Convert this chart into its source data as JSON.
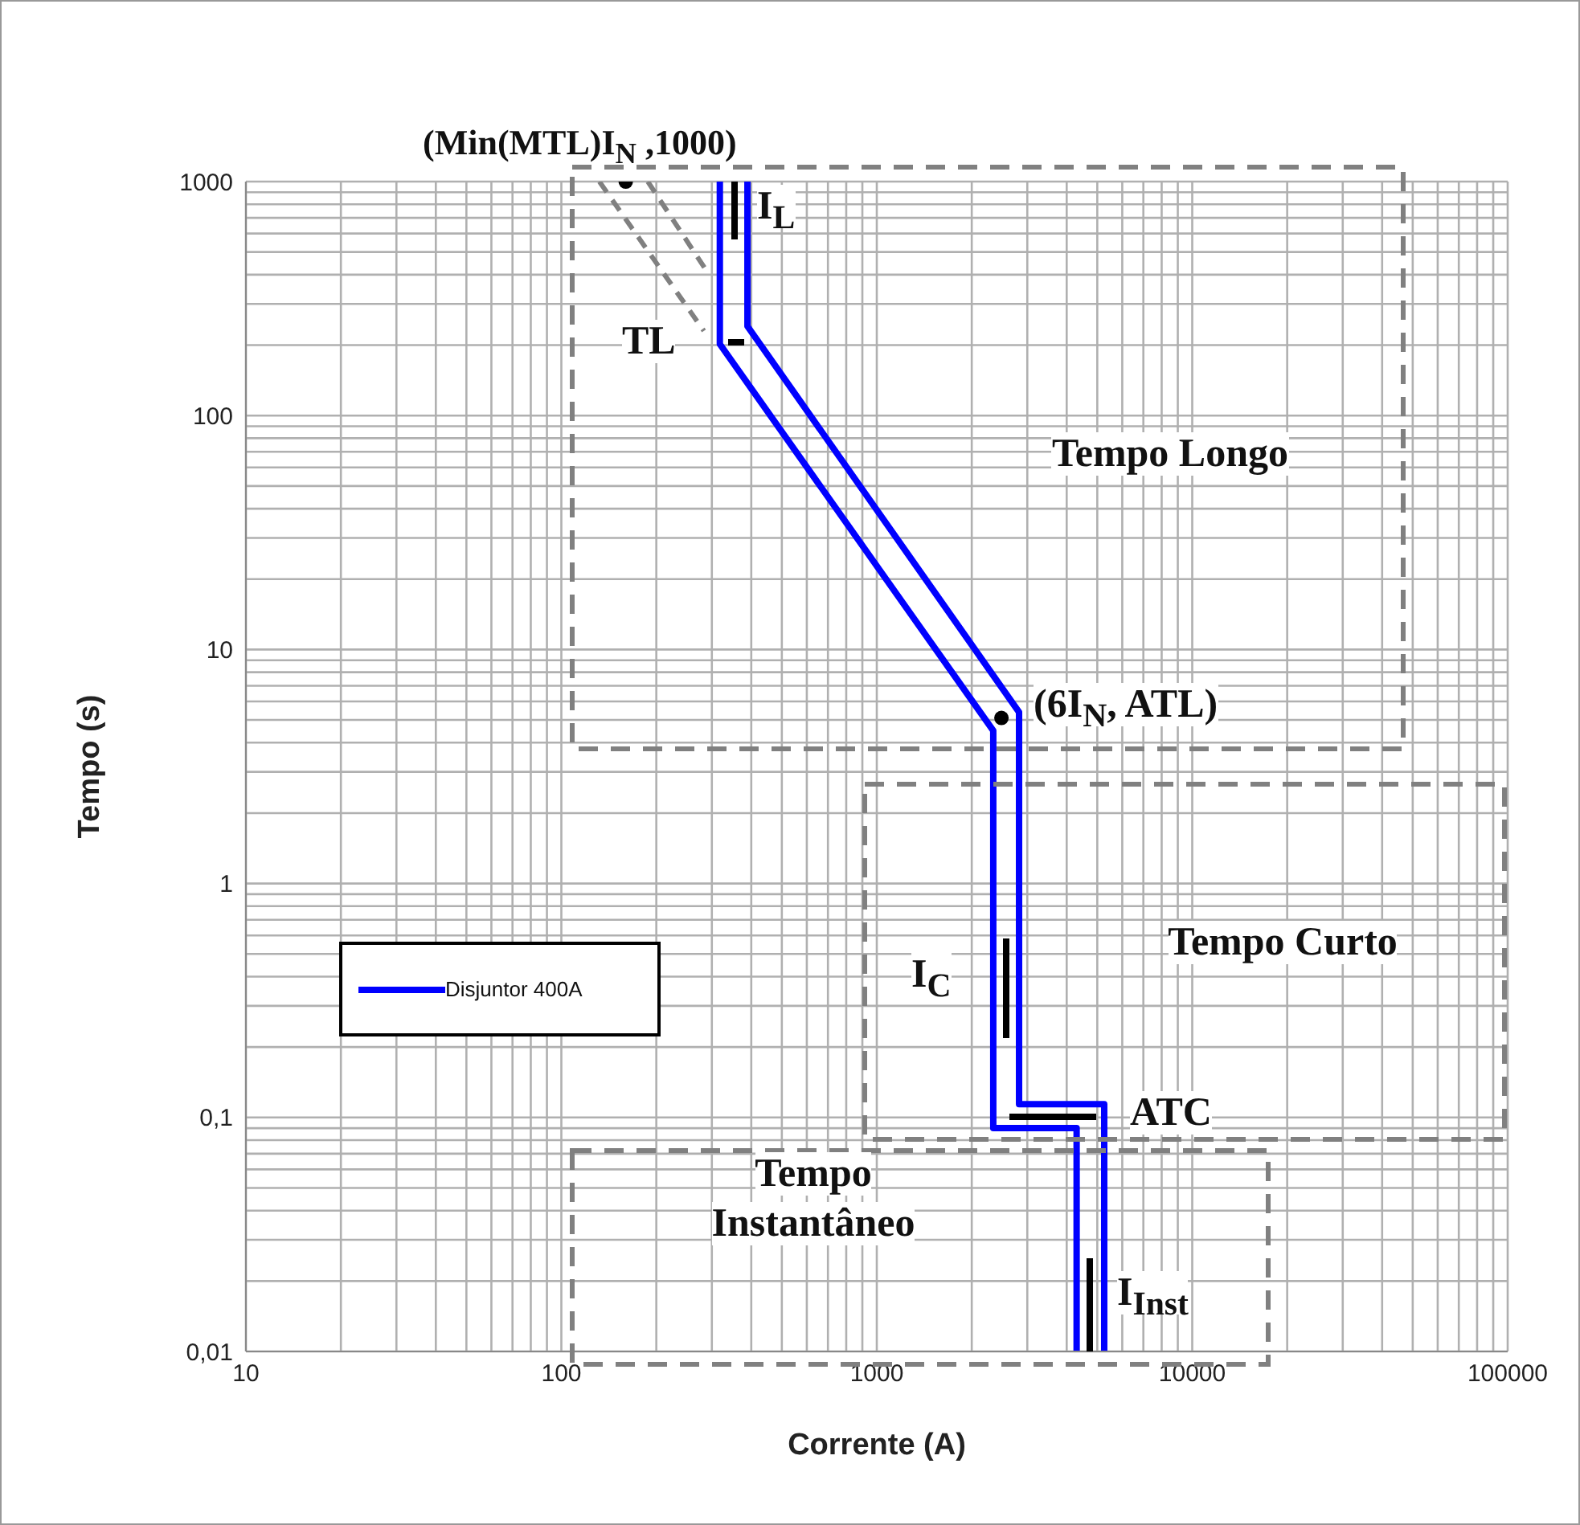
{
  "chart_data": {
    "type": "line",
    "xlabel": "Corrente (A)",
    "ylabel": "Tempo (s)",
    "log": "xy",
    "grid": true,
    "legend": "left",
    "marker": "none",
    "line_style": "solid",
    "xlim": [
      10,
      100000
    ],
    "xticks": [
      10,
      {
        "value": 20,
        "label": null
      },
      {
        "value": 30,
        "label": null
      },
      {
        "value": 40,
        "label": null
      },
      {
        "value": 50,
        "label": null
      },
      {
        "value": 60,
        "label": null
      },
      {
        "value": 70,
        "label": null
      },
      {
        "value": 80,
        "label": null
      },
      {
        "value": 90,
        "label": null
      },
      100,
      {
        "value": 200,
        "label": null
      },
      {
        "value": 300,
        "label": null
      },
      {
        "value": 400,
        "label": null
      },
      {
        "value": 500,
        "label": null
      },
      {
        "value": 600,
        "label": null
      },
      {
        "value": 700,
        "label": null
      },
      {
        "value": 800,
        "label": null
      },
      {
        "value": 900,
        "label": null
      },
      1000,
      {
        "value": 2000,
        "label": null
      },
      {
        "value": 3000,
        "label": null
      },
      {
        "value": 4000,
        "label": null
      },
      {
        "value": 5000,
        "label": null
      },
      {
        "value": 6000,
        "label": null
      },
      {
        "value": 7000,
        "label": null
      },
      {
        "value": 8000,
        "label": null
      },
      {
        "value": 9000,
        "label": null
      },
      10000,
      {
        "value": 20000,
        "label": null
      },
      {
        "value": 30000,
        "label": null
      },
      {
        "value": 40000,
        "label": null
      },
      {
        "value": 50000,
        "label": null
      },
      {
        "value": 60000,
        "label": null
      },
      {
        "value": 70000,
        "label": null
      },
      {
        "value": 80000,
        "label": null
      },
      {
        "value": 90000,
        "label": null
      },
      100000
    ],
    "ylim": [
      0.01,
      1000
    ],
    "yticks": [
      {
        "value": 0.01,
        "label": "0,01"
      },
      {
        "value": 0.02,
        "label": null
      },
      {
        "value": 0.03,
        "label": null
      },
      {
        "value": 0.04,
        "label": null
      },
      {
        "value": 0.05,
        "label": null
      },
      {
        "value": 0.06,
        "label": null
      },
      {
        "value": 0.07,
        "label": null
      },
      {
        "value": 0.08,
        "label": null
      },
      {
        "value": 0.09,
        "label": null
      },
      {
        "value": 0.1,
        "label": "0,1"
      },
      {
        "value": 0.2,
        "label": null
      },
      {
        "value": 0.3,
        "label": null
      },
      {
        "value": 0.4,
        "label": null
      },
      {
        "value": 0.5,
        "label": null
      },
      {
        "value": 0.6,
        "label": null
      },
      {
        "value": 0.7,
        "label": null
      },
      {
        "value": 0.8,
        "label": null
      },
      {
        "value": 0.9,
        "label": null
      },
      1,
      {
        "value": 2,
        "label": null
      },
      {
        "value": 3,
        "label": null
      },
      {
        "value": 4,
        "label": null
      },
      {
        "value": 5,
        "label": null
      },
      {
        "value": 6,
        "label": null
      },
      {
        "value": 7,
        "label": null
      },
      {
        "value": 8,
        "label": null
      },
      {
        "value": 9,
        "label": null
      },
      10,
      {
        "value": 20,
        "label": null
      },
      {
        "value": 30,
        "label": null
      },
      {
        "value": 40,
        "label": null
      },
      {
        "value": 50,
        "label": null
      },
      {
        "value": 60,
        "label": null
      },
      {
        "value": 70,
        "label": null
      },
      {
        "value": 80,
        "label": null
      },
      {
        "value": 90,
        "label": null
      },
      100,
      {
        "value": 200,
        "label": null
      },
      {
        "value": 300,
        "label": null
      },
      {
        "value": 400,
        "label": null
      },
      {
        "value": 500,
        "label": null
      },
      {
        "value": 600,
        "label": null
      },
      {
        "value": 700,
        "label": null
      },
      {
        "value": 800,
        "label": null
      },
      {
        "value": 900,
        "label": null
      },
      1000
    ],
    "series": [
      {
        "name": "Disjuntor 400A",
        "color": "#0000ff",
        "x": [
          318,
          318,
          2340,
          2340,
          4300,
          4300
        ],
        "values": [
          1000,
          202,
          4.5,
          0.09,
          0.09,
          0.01
        ]
      },
      {
        "color": "#0000ff",
        "x": [
          389,
          389,
          2825,
          2825,
          5260,
          5260
        ],
        "values": [
          1000,
          241,
          5.4,
          0.114,
          0.114,
          0.01
        ]
      },
      {
        "color": "#808080",
        "line_style": "dashed",
        "x": [
          132,
          283
        ],
        "values": [
          1000,
          230
        ]
      },
      {
        "color": "#808080",
        "line_style": "dashed",
        "x": [
          188,
          294
        ],
        "values": [
          1000,
          400
        ]
      },
      {
        "type": "scatter",
        "color": "#000000",
        "marker": "circle",
        "x": [
          160,
          2484
        ],
        "values": [
          1000,
          5.1
        ]
      }
    ],
    "annotations": [
      "(Min(MTL)I$_{N}$ ,1000)",
      "I$_{L}$",
      "TL",
      "Tempo Longo",
      "(6I$_{N}$, ATL)",
      "Tempo Curto",
      "I$_{C}$",
      "ATC",
      "Tempo Instantâneo",
      "I$_{Inst}$"
    ]
  }
}
